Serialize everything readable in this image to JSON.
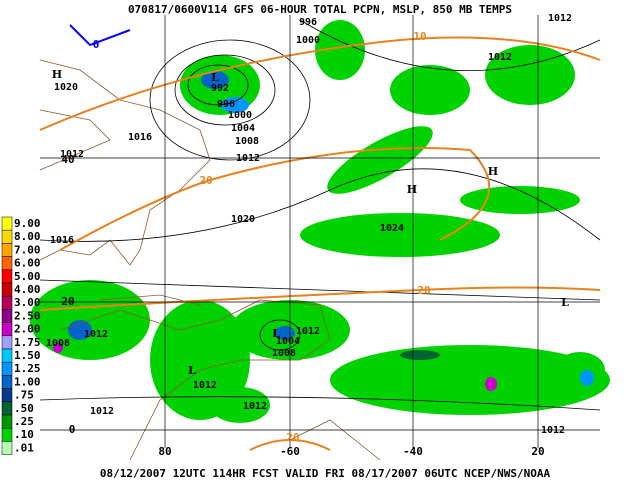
{
  "header": {
    "title": "070817/0600V114 GFS 06-HOUR TOTAL PCPN, MSLP, 850 MB TEMPS"
  },
  "footer": {
    "caption": "08/12/2007 12UTC 114HR FCST VALID FRI 08/17/2007 06UTC  NCEP/NWS/NOAA"
  },
  "legend": {
    "items": [
      {
        "label": "9.00",
        "color": "#ffff00"
      },
      {
        "label": "8.00",
        "color": "#ffd700"
      },
      {
        "label": "7.00",
        "color": "#ffa500"
      },
      {
        "label": "6.00",
        "color": "#ff6600"
      },
      {
        "label": "5.00",
        "color": "#ff0000"
      },
      {
        "label": "4.00",
        "color": "#c80000"
      },
      {
        "label": "3.00",
        "color": "#b4005a"
      },
      {
        "label": "2.50",
        "color": "#8c008c"
      },
      {
        "label": "2.00",
        "color": "#c800c8"
      },
      {
        "label": "1.75",
        "color": "#a0a0ff"
      },
      {
        "label": "1.50",
        "color": "#00c8ff"
      },
      {
        "label": "1.25",
        "color": "#0096ff"
      },
      {
        "label": "1.00",
        "color": "#0064c8"
      },
      {
        "label": ".75",
        "color": "#003c8c"
      },
      {
        "label": ".50",
        "color": "#006432"
      },
      {
        "label": ".25",
        "color": "#009600"
      },
      {
        "label": ".10",
        "color": "#00d200"
      },
      {
        "label": ".01",
        "color": "#b4ffb4"
      }
    ]
  },
  "map": {
    "pressure_labels": [
      "996",
      "1000",
      "1012",
      "1012",
      "1020",
      "992",
      "996",
      "1000",
      "1004",
      "1008",
      "1016",
      "1012",
      "1012",
      "1020",
      "1024",
      "1016",
      "1012",
      "1004",
      "1008",
      "1012",
      "1008",
      "1012",
      "1012",
      "1012",
      "1012"
    ],
    "temperature_labels": [
      "0",
      "10",
      "20",
      "20",
      "20"
    ],
    "centers": [
      "H",
      "L",
      "H",
      "H",
      "L",
      "L",
      "L"
    ],
    "latitude_labels": [
      "40",
      "20",
      "0"
    ],
    "longitude_labels": [
      "80",
      "-60",
      "-40",
      "20"
    ]
  }
}
